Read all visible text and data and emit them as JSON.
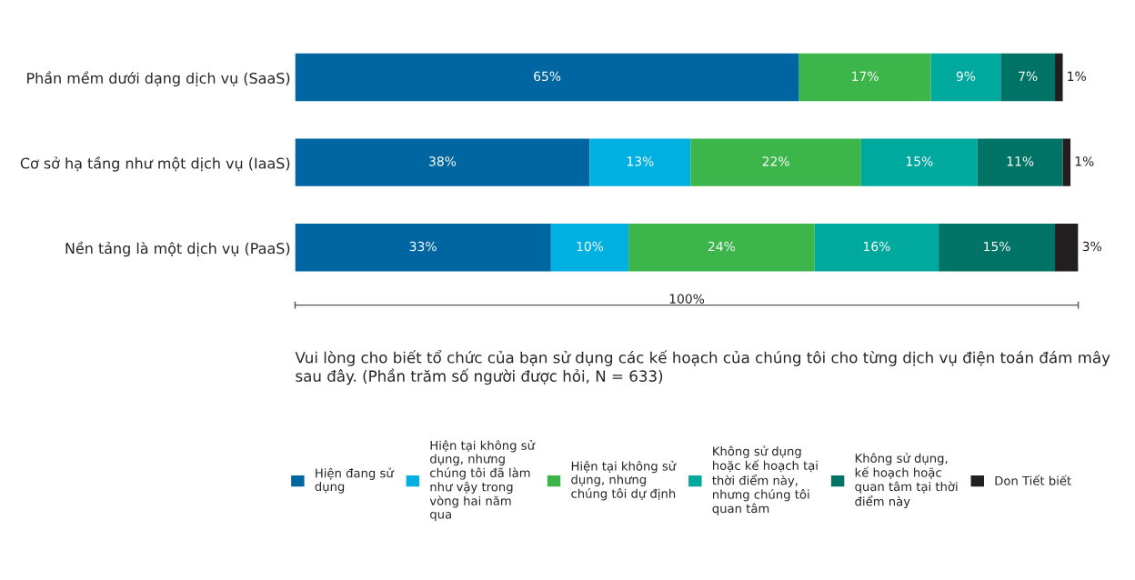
{
  "chart_data": {
    "type": "bar",
    "orientation": "horizontal",
    "stacked": true,
    "title": "Vui lòng cho biết tổ chức của bạn sử dụng các kế hoạch của chúng tôi cho từng dịch vụ điện toán đám mây sau đây. (Phần trăm số người được hỏi, N = 633)",
    "xlabel": "100%",
    "categories": [
      "Phần mềm dưới dạng dịch vụ (SaaS)",
      "Cơ sở hạ tầng như một dịch vụ (IaaS)",
      "Nền tảng là một dịch vụ (PaaS)"
    ],
    "xlim": [
      0,
      101
    ],
    "tick_labels": "y",
    "grid": false,
    "legend": "bottom",
    "series": [
      {
        "name": "Hiện đang sử dụng",
        "color": "#0066a1",
        "values": [
          65,
          38,
          33
        ],
        "value_labels": [
          "65%",
          "38%",
          "33%"
        ]
      },
      {
        "name": "Hiện tại không sử dụng, nhưng chúng tôi đã làm như vậy trong vòng hai năm qua",
        "color": "#00b0e0",
        "values": [
          null,
          13,
          10
        ],
        "value_labels": [
          null,
          "13%",
          "10%"
        ]
      },
      {
        "name": "Hiện tại không sử dụng, nhưng chúng tôi dự định",
        "color": "#3cb54a",
        "values": [
          17,
          22,
          24
        ],
        "value_labels": [
          "17%",
          "22%",
          "24%"
        ]
      },
      {
        "name": "Không sử dụng hoặc kế hoạch tại thời điểm này, nhưng chúng tôi quan tâm",
        "color": "#00a99d",
        "values": [
          9,
          15,
          16
        ],
        "value_labels": [
          "9%",
          "15%",
          "16%"
        ]
      },
      {
        "name": "Không sử dụng, kế hoạch hoặc quan tâm tại thời điểm này",
        "color": "#007367",
        "values": [
          7,
          11,
          15
        ],
        "value_labels": [
          "7%",
          "11%",
          "15%"
        ]
      },
      {
        "name": "Don Tiết biết",
        "color": "#231f20",
        "values": [
          1,
          1,
          3
        ],
        "value_labels": [
          "1%",
          "1%",
          "3%"
        ]
      }
    ]
  }
}
